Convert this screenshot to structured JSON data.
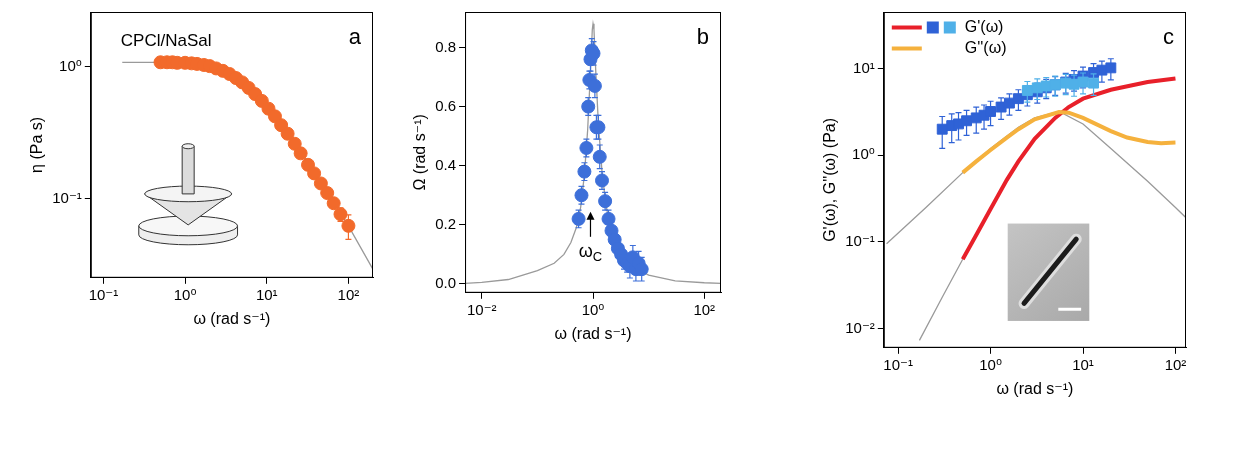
{
  "chart_data": [
    {
      "type": "scatter",
      "panel": "a",
      "annotations": [
        {
          "text": "CPCl/NaSal"
        }
      ],
      "x_label": "ω (rad s⁻¹)",
      "y_label": "η (Pa s)",
      "log": true,
      "grid": false,
      "xlim": [
        0.07,
        200
      ],
      "ylim": [
        0.025,
        2.6
      ],
      "xticks": [
        {
          "value": 0.1,
          "label": "10⁻¹"
        },
        {
          "value": 1,
          "label": "10⁰"
        },
        {
          "value": 10,
          "label": "10¹"
        },
        {
          "value": 100,
          "label": "10²"
        }
      ],
      "yticks": [
        {
          "value": 0.1,
          "label": "10⁻¹"
        },
        {
          "value": 1,
          "label": "10⁰"
        }
      ],
      "series": [
        {
          "type": "line",
          "color": "#9a9a9a",
          "line_style": "solid",
          "x": [
            0.17,
            0.3,
            0.5,
            1,
            2,
            3,
            5,
            10,
            20,
            50,
            100,
            200
          ],
          "values": [
            1.08,
            1.08,
            1.08,
            1.07,
            1.01,
            0.93,
            0.77,
            0.5,
            0.29,
            0.125,
            0.062,
            0.029
          ]
        },
        {
          "type": "scatter",
          "color": "#f26a2b",
          "marker": "circle",
          "x": [
            0.5,
            0.6,
            0.7,
            0.8,
            1.0,
            1.2,
            1.4,
            1.7,
            2.0,
            2.4,
            2.9,
            3.5,
            4.2,
            5,
            6,
            7.2,
            8.7,
            10.5,
            12.6,
            15,
            18,
            22,
            26,
            32,
            38,
            46,
            55,
            66,
            80,
            100
          ],
          "values": [
            1.08,
            1.08,
            1.08,
            1.07,
            1.07,
            1.06,
            1.05,
            1.03,
            1.01,
            0.97,
            0.93,
            0.88,
            0.82,
            0.76,
            0.69,
            0.62,
            0.55,
            0.48,
            0.42,
            0.36,
            0.31,
            0.26,
            0.22,
            0.18,
            0.155,
            0.13,
            0.11,
            0.092,
            0.076,
            0.062
          ],
          "errors": [
            null,
            null,
            null,
            null,
            null,
            null,
            null,
            null,
            null,
            null,
            null,
            null,
            null,
            null,
            null,
            null,
            null,
            null,
            null,
            null,
            null,
            null,
            null,
            null,
            null,
            null,
            0.004,
            0.006,
            0.009,
            0.013
          ]
        }
      ]
    },
    {
      "type": "scatter",
      "panel": "b",
      "annotations": [
        {
          "text": "ω",
          "subscript": "C",
          "x": 0.9
        }
      ],
      "x_label": "ω (rad s⁻¹)",
      "y_label": "Ω (rad s⁻¹)",
      "log": "x",
      "grid": false,
      "xlim": [
        0.005,
        200
      ],
      "ylim": [
        -0.03,
        0.92
      ],
      "xticks": [
        {
          "value": 0.01,
          "label": "10⁻²"
        },
        {
          "value": 1,
          "label": "10⁰"
        },
        {
          "value": 100,
          "label": "10²"
        }
      ],
      "yticks": [
        {
          "value": 0,
          "label": "0.0"
        },
        0.2,
        0.4,
        0.6,
        0.8
      ],
      "series": [
        {
          "type": "line",
          "color": "#9a9a9a",
          "line_style": "solid",
          "x": [
            0.005,
            0.01,
            0.03,
            0.1,
            0.2,
            0.3,
            0.4,
            0.5,
            0.6,
            0.7,
            0.8,
            0.9,
            0.97,
            1.0,
            1.04,
            1.12,
            1.25,
            1.45,
            1.7,
            2.0,
            3.0,
            5,
            10,
            30,
            100,
            200
          ],
          "values": [
            0.002,
            0.005,
            0.015,
            0.045,
            0.07,
            0.1,
            0.14,
            0.19,
            0.26,
            0.37,
            0.52,
            0.72,
            0.86,
            0.88,
            0.86,
            0.72,
            0.54,
            0.38,
            0.27,
            0.2,
            0.11,
            0.06,
            0.03,
            0.01,
            0.004,
            0.002
          ]
        },
        {
          "type": "scatter",
          "color": "#3d6fd9",
          "marker": "circle",
          "x": [
            0.55,
            0.62,
            0.7,
            0.76,
            0.82,
            0.86,
            0.9,
            0.95,
            1.02,
            1.08,
            1.15,
            1.25,
            1.32,
            1.45,
            1.65,
            1.9,
            2.15,
            2.45,
            2.8,
            3.2,
            3.6,
            4.1,
            4.6,
            5.2,
            5.9,
            6.6,
            7.5
          ],
          "values": [
            0.22,
            0.3,
            0.38,
            0.46,
            0.6,
            0.69,
            0.76,
            0.79,
            0.78,
            0.67,
            0.53,
            0.53,
            0.43,
            0.35,
            0.28,
            0.22,
            0.18,
            0.15,
            0.12,
            0.1,
            0.08,
            0.07,
            0.06,
            0.09,
            0.05,
            0.07,
            0.05
          ],
          "errors": [
            0.03,
            0.03,
            0.03,
            0.03,
            0.03,
            0.03,
            0.04,
            0.04,
            0.04,
            0.04,
            0.04,
            0.04,
            0.04,
            0.03,
            0.03,
            0.03,
            0.03,
            0.03,
            0.03,
            0.03,
            0.03,
            0.03,
            0.04,
            0.04,
            0.04,
            0.04,
            0.04
          ]
        }
      ]
    },
    {
      "type": "scatter",
      "panel": "c",
      "x_label": "ω (rad s⁻¹)",
      "y_label": "G'(ω), G''(ω) (Pa)",
      "log": true,
      "grid": false,
      "legend": "upper left",
      "xlim": [
        0.07,
        130
      ],
      "ylim": [
        0.006,
        45
      ],
      "xticks": [
        {
          "value": 0.1,
          "label": "10⁻¹"
        },
        {
          "value": 1,
          "label": "10⁰"
        },
        {
          "value": 10,
          "label": "10¹"
        },
        {
          "value": 100,
          "label": "10²"
        }
      ],
      "yticks": [
        {
          "value": 0.01,
          "label": "10⁻²"
        },
        {
          "value": 0.1,
          "label": "10⁻¹"
        },
        {
          "value": 1,
          "label": "10⁰"
        },
        {
          "value": 10,
          "label": "10¹"
        }
      ],
      "series": [
        {
          "type": "line",
          "color": "#9a9a9a",
          "line_style": "solid",
          "x": [
            0.075,
            0.2,
            0.5,
            1,
            2,
            3,
            5.5,
            10,
            20,
            50,
            100,
            130
          ],
          "values": [
            0.095,
            0.25,
            0.63,
            1.2,
            2.1,
            2.7,
            3.2,
            2.3,
            1.2,
            0.5,
            0.25,
            0.19
          ]
        },
        {
          "type": "line",
          "color": "#9a9a9a",
          "line_style": "solid",
          "x": [
            0.17,
            0.3,
            0.5
          ],
          "values": [
            0.0073,
            0.023,
            0.063
          ]
        },
        {
          "name": "G'(ω)",
          "type": "line",
          "color": "#e8202a",
          "line_style": "solid",
          "x": [
            0.5,
            0.7,
            1,
            1.5,
            2,
            3,
            5,
            7,
            10,
            20,
            50,
            100
          ],
          "values": [
            0.063,
            0.12,
            0.24,
            0.52,
            0.85,
            1.55,
            2.7,
            3.6,
            4.5,
            5.7,
            7.0,
            7.7
          ]
        },
        {
          "name": "G''(ω)",
          "type": "line",
          "color": "#f5b13d",
          "line_style": "solid",
          "x": [
            0.5,
            0.7,
            1,
            1.5,
            2,
            3,
            5.5,
            7,
            10,
            20,
            30,
            50,
            70,
            100
          ],
          "values": [
            0.63,
            0.85,
            1.15,
            1.6,
            2.0,
            2.6,
            3.15,
            3.1,
            2.7,
            1.9,
            1.6,
            1.42,
            1.38,
            1.4
          ]
        },
        {
          "name": "G'(ω)",
          "type": "scatter",
          "color": "#2f62d6",
          "marker": "square",
          "x": [
            0.3,
            0.38,
            0.45,
            0.55,
            0.7,
            0.85,
            1.0,
            1.3,
            1.6,
            2.0,
            2.5,
            3.2,
            4.0,
            5,
            6.5,
            8,
            10,
            13,
            16,
            20
          ],
          "values": [
            2.0,
            2.2,
            2.3,
            2.5,
            2.7,
            2.9,
            3.2,
            3.6,
            4.0,
            4.5,
            5.0,
            5.4,
            6.0,
            6.5,
            7.0,
            7.5,
            8.2,
            9.0,
            9.6,
            10.2
          ],
          "errors": [
            0.8,
            0.8,
            0.8,
            0.8,
            0.9,
            0.9,
            1.0,
            1.0,
            1.1,
            1.2,
            1.3,
            1.4,
            1.5,
            1.6,
            1.8,
            2.0,
            2.2,
            2.4,
            2.6,
            2.8
          ]
        },
        {
          "name": "G'(ω)",
          "type": "scatter",
          "color": "#4fb0e8",
          "marker": "square",
          "x": [
            2.5,
            3.2,
            4.0,
            5,
            6.5,
            8,
            10,
            13
          ],
          "values": [
            5.6,
            6.0,
            6.3,
            6.5,
            6.8,
            6.6,
            7.0,
            6.8
          ],
          "errors": [
            1.5,
            1.6,
            1.6,
            1.7,
            1.8,
            1.8,
            1.9,
            1.9
          ]
        }
      ]
    }
  ]
}
